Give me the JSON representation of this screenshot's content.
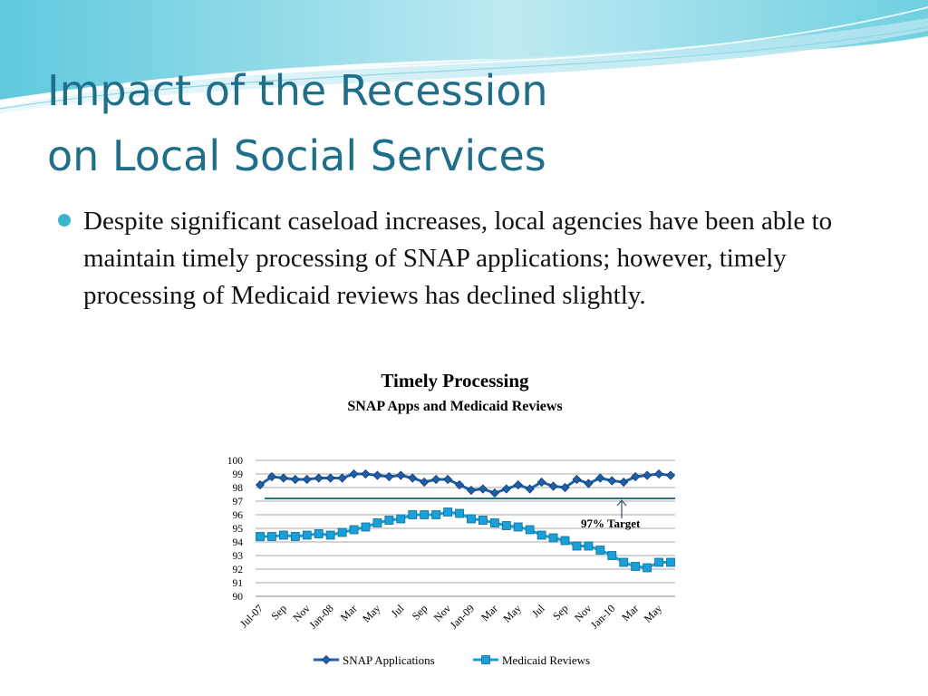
{
  "slide": {
    "title_line1": "Impact of the Recession",
    "title_line2": "on Local Social Services",
    "bullet": "Despite significant caseload increases, local agencies have been able to maintain timely processing of SNAP applications; however, timely processing of Medicaid reviews has declined slightly."
  },
  "colors": {
    "title": "#1f6f8b",
    "bullet": "#3bb6cf",
    "snap": "#1f5fa8",
    "medicaid": "#1a9fd8",
    "target": "#2a6f8a"
  },
  "chart_data": {
    "type": "line",
    "title": "Timely Processing",
    "subtitle": "SNAP Apps and Medicaid Reviews",
    "x": [
      "Jul-07",
      "Aug-07",
      "Sep-07",
      "Oct-07",
      "Nov-07",
      "Dec-07",
      "Jan-08",
      "Feb-08",
      "Mar-08",
      "Apr-08",
      "May-08",
      "Jun-08",
      "Jul-08",
      "Aug-08",
      "Sep-08",
      "Oct-08",
      "Nov-08",
      "Dec-08",
      "Jan-09",
      "Feb-09",
      "Mar-09",
      "Apr-09",
      "May-09",
      "Jun-09",
      "Jul-09",
      "Aug-09",
      "Sep-09",
      "Oct-09",
      "Nov-09",
      "Dec-09",
      "Jan-10",
      "Feb-10",
      "Mar-10",
      "Apr-10",
      "May-10",
      "Jun-10"
    ],
    "tick_labels": [
      {
        "at": "Jul-07",
        "label": "Jul-07"
      },
      {
        "at": "Sep-07",
        "label": "Sep"
      },
      {
        "at": "Nov-07",
        "label": "Nov"
      },
      {
        "at": "Jan-08",
        "label": "Jan-08"
      },
      {
        "at": "Mar-08",
        "label": "Mar"
      },
      {
        "at": "May-08",
        "label": "May"
      },
      {
        "at": "Jul-08",
        "label": "Jul"
      },
      {
        "at": "Sep-08",
        "label": "Sep"
      },
      {
        "at": "Nov-08",
        "label": "Nov"
      },
      {
        "at": "Jan-09",
        "label": "Jan-09"
      },
      {
        "at": "Mar-09",
        "label": "Mar"
      },
      {
        "at": "May-09",
        "label": "May"
      },
      {
        "at": "Jul-09",
        "label": "Jul"
      },
      {
        "at": "Sep-09",
        "label": "Sep"
      },
      {
        "at": "Nov-09",
        "label": "Nov"
      },
      {
        "at": "Jan-10",
        "label": "Jan-10"
      },
      {
        "at": "Mar-10",
        "label": "Mar"
      },
      {
        "at": "May-10",
        "label": "May"
      }
    ],
    "series": [
      {
        "name": "SNAP  Applications",
        "marker": "diamond",
        "values": [
          98.2,
          98.8,
          98.7,
          98.6,
          98.6,
          98.7,
          98.7,
          98.7,
          99.0,
          99.0,
          98.9,
          98.8,
          98.9,
          98.7,
          98.4,
          98.6,
          98.6,
          98.2,
          97.8,
          97.9,
          97.6,
          97.9,
          98.2,
          97.9,
          98.4,
          98.1,
          98.0,
          98.6,
          98.3,
          98.7,
          98.5,
          98.4,
          98.8,
          98.9,
          99.0,
          98.9
        ]
      },
      {
        "name": "Medicaid  Reviews",
        "marker": "square",
        "values": [
          94.4,
          94.4,
          94.5,
          94.4,
          94.5,
          94.6,
          94.5,
          94.7,
          94.9,
          95.1,
          95.4,
          95.6,
          95.7,
          96.0,
          96.0,
          96.0,
          96.2,
          96.1,
          95.7,
          95.6,
          95.4,
          95.2,
          95.1,
          94.9,
          94.5,
          94.3,
          94.1,
          93.7,
          93.7,
          93.4,
          93.0,
          92.5,
          92.2,
          92.1,
          92.5,
          92.5
        ]
      }
    ],
    "target": {
      "value": 97.2,
      "label": "97% Target"
    },
    "ylim": [
      90,
      100
    ],
    "yticks": [
      90,
      91,
      92,
      93,
      94,
      95,
      96,
      97,
      98,
      99,
      100
    ],
    "grid": true,
    "legend_position": "bottom"
  }
}
